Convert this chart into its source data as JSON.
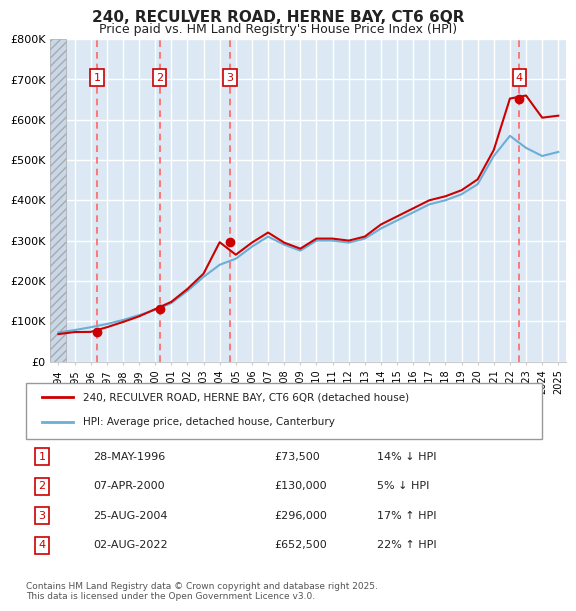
{
  "title": "240, RECULVER ROAD, HERNE BAY, CT6 6QR",
  "subtitle": "Price paid vs. HM Land Registry's House Price Index (HPI)",
  "ylabel_ticks": [
    "£0",
    "£100K",
    "£200K",
    "£300K",
    "£400K",
    "£500K",
    "£600K",
    "£700K",
    "£800K"
  ],
  "ytick_values": [
    0,
    100000,
    200000,
    300000,
    400000,
    500000,
    600000,
    700000,
    800000
  ],
  "ylim": [
    0,
    800000
  ],
  "xlim_start": 1993.5,
  "xlim_end": 2025.5,
  "background_color": "#dce9f5",
  "grid_color": "#ffffff",
  "hatch_end_year": 1994.5,
  "sales": [
    {
      "year": 1996.41,
      "price": 73500,
      "label": "1"
    },
    {
      "year": 2000.27,
      "price": 130000,
      "label": "2"
    },
    {
      "year": 2004.65,
      "price": 296000,
      "label": "3"
    },
    {
      "year": 2022.59,
      "price": 652500,
      "label": "4"
    }
  ],
  "hpi_line": {
    "color": "#6baed6",
    "years": [
      1994,
      1995,
      1996,
      1997,
      1998,
      1999,
      2000,
      2001,
      2002,
      2003,
      2004,
      2005,
      2006,
      2007,
      2008,
      2009,
      2010,
      2011,
      2012,
      2013,
      2014,
      2015,
      2016,
      2017,
      2018,
      2019,
      2020,
      2021,
      2022,
      2023,
      2024,
      2025
    ],
    "values": [
      72000,
      78000,
      85000,
      93000,
      103000,
      115000,
      128000,
      145000,
      175000,
      210000,
      240000,
      255000,
      285000,
      310000,
      290000,
      275000,
      300000,
      300000,
      295000,
      305000,
      330000,
      350000,
      370000,
      390000,
      400000,
      415000,
      440000,
      510000,
      560000,
      530000,
      510000,
      520000
    ]
  },
  "red_line": {
    "color": "#cc0000",
    "years": [
      1994,
      1995,
      1996,
      1997,
      1998,
      1999,
      2000,
      2001,
      2002,
      2003,
      2004,
      2005,
      2006,
      2007,
      2008,
      2009,
      2010,
      2011,
      2012,
      2013,
      2014,
      2015,
      2016,
      2017,
      2018,
      2019,
      2020,
      2021,
      2022,
      2023,
      2024,
      2025
    ],
    "values": [
      68000,
      73000,
      73500,
      85000,
      98000,
      112000,
      130000,
      148000,
      180000,
      218000,
      296000,
      265000,
      295000,
      320000,
      295000,
      280000,
      305000,
      305000,
      300000,
      310000,
      340000,
      360000,
      380000,
      400000,
      410000,
      425000,
      452000,
      525000,
      652500,
      660000,
      605000,
      610000
    ]
  },
  "legend_line1": "240, RECULVER ROAD, HERNE BAY, CT6 6QR (detached house)",
  "legend_line2": "HPI: Average price, detached house, Canterbury",
  "table_rows": [
    {
      "num": "1",
      "date": "28-MAY-1996",
      "price": "£73,500",
      "hpi": "14% ↓ HPI"
    },
    {
      "num": "2",
      "date": "07-APR-2000",
      "price": "£130,000",
      "hpi": "5% ↓ HPI"
    },
    {
      "num": "3",
      "date": "25-AUG-2004",
      "price": "£296,000",
      "hpi": "17% ↑ HPI"
    },
    {
      "num": "4",
      "date": "02-AUG-2022",
      "price": "£652,500",
      "hpi": "22% ↑ HPI"
    }
  ],
  "footer": "Contains HM Land Registry data © Crown copyright and database right 2025.\nThis data is licensed under the Open Government Licence v3.0.",
  "vline_color": "#ff6666",
  "sale_dot_color": "#cc0000",
  "annotation_box_color": "#cc0000",
  "annotation_text_color": "#cc0000"
}
